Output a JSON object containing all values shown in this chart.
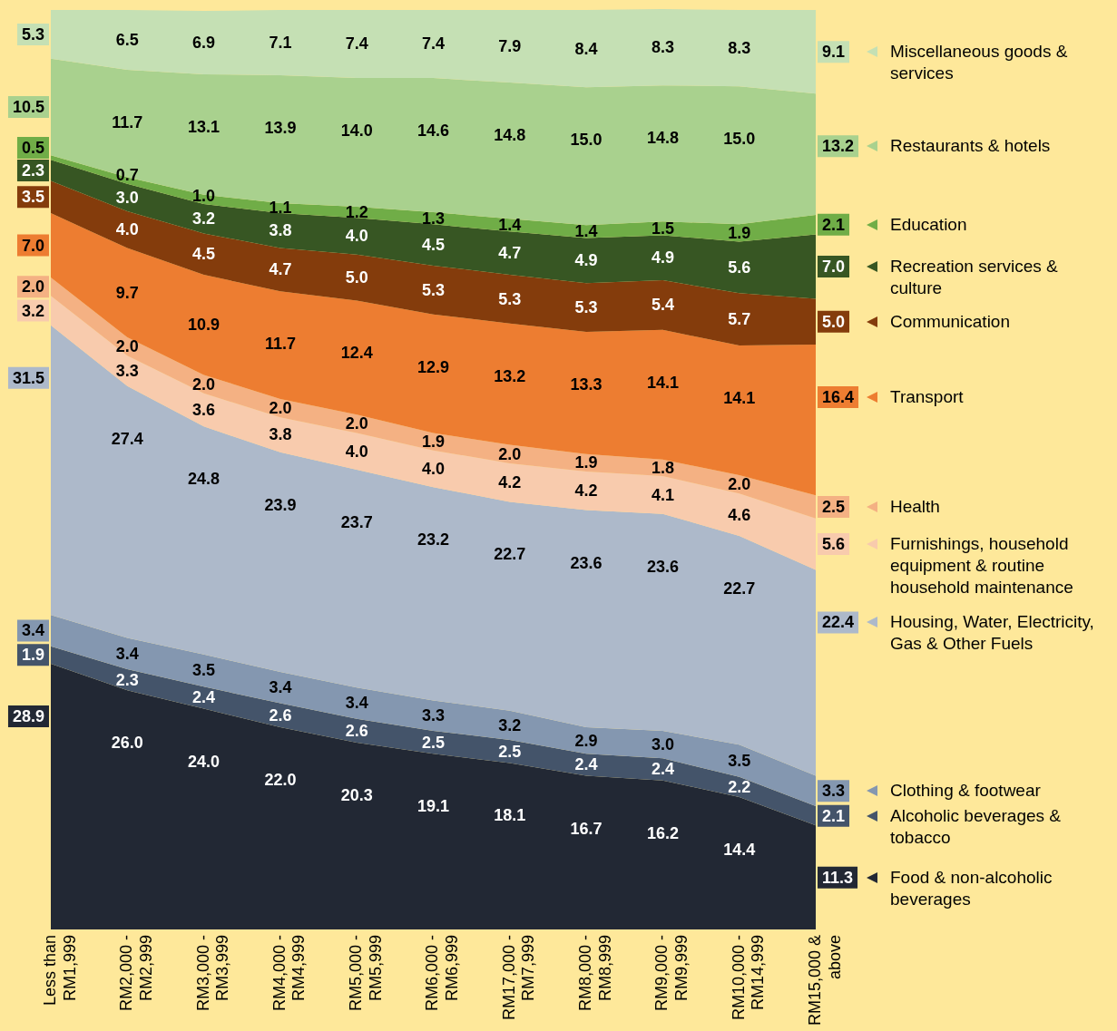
{
  "chart_data": {
    "type": "area",
    "stacked": true,
    "legend": "right",
    "tick_labels": "x",
    "categories": [
      "Less than RM1,999",
      "RM2,000 - RM2,999",
      "RM3,000 - RM3,999",
      "RM4,000 - RM4,999",
      "RM5,000 - RM5,999",
      "RM6,000 - RM6,999",
      "RM17,000 - RM7,999",
      "RM8,000 - RM8,999",
      "RM9,000 - RM9,999",
      "RM10,000 - RM14,999",
      "RM15,000 & above"
    ],
    "series": [
      {
        "name": "Food & non-alcoholic beverages",
        "color": "#222834",
        "values": [
          28.9,
          26.0,
          24.0,
          22.0,
          20.3,
          19.1,
          18.1,
          16.7,
          16.2,
          14.4,
          11.3
        ],
        "value_labels": [
          "28.9",
          "26.0",
          "24.0",
          "22.0",
          "20.3",
          "19.1",
          "18.1",
          "16.7",
          "16.2",
          "14.4",
          "11.3"
        ]
      },
      {
        "name": "Alcoholic beverages & tobacco",
        "color": "#44546a",
        "values": [
          1.9,
          2.3,
          2.4,
          2.6,
          2.6,
          2.5,
          2.5,
          2.4,
          2.4,
          2.2,
          2.1
        ],
        "value_labels": [
          "1.9",
          "2.3",
          "2.4",
          "2.6",
          "2.6",
          "2.5",
          "2.5",
          "2.4",
          "2.4",
          "2.2",
          "2.1"
        ]
      },
      {
        "name": "Clothing & footwear",
        "color": "#8497b0",
        "values": [
          3.4,
          3.4,
          3.5,
          3.4,
          3.4,
          3.3,
          3.2,
          2.9,
          3.0,
          3.5,
          3.3
        ],
        "value_labels": [
          "3.4",
          "3.4",
          "3.5",
          "3.4",
          "3.4",
          "3.3",
          "3.2",
          "2.9",
          "3.0",
          "3.5",
          "3.3"
        ]
      },
      {
        "name": "Housing, Water, Electricity, Gas & Other Fuels",
        "color": "#adb9ca",
        "values": [
          31.5,
          27.4,
          24.8,
          23.9,
          23.7,
          23.2,
          22.7,
          23.6,
          23.6,
          22.7,
          22.4
        ],
        "value_labels": [
          "31.5",
          "27.4",
          "24.8",
          "23.9",
          "23.7",
          "23.2",
          "22.7",
          "23.6",
          "23.6",
          "22.7",
          "22.4"
        ]
      },
      {
        "name": "Furnishings, household equipment & routine household maintenance",
        "color": "#f8cbad",
        "values": [
          3.2,
          3.3,
          3.6,
          3.8,
          4.0,
          4.0,
          4.2,
          4.2,
          4.1,
          4.6,
          5.6
        ],
        "value_labels": [
          "3.2",
          "3.3",
          "3.6",
          "3.8",
          "4.0",
          "4.0",
          "4.2",
          "4.2",
          "4.1",
          "4.6",
          "5.6"
        ]
      },
      {
        "name": "Health",
        "color": "#f4b183",
        "values": [
          2.0,
          2.0,
          2.0,
          2.0,
          2.0,
          1.9,
          2.0,
          1.9,
          1.8,
          2.0,
          2.5
        ],
        "value_labels": [
          "2.0",
          "2.0",
          "2.0",
          "2.0",
          "2.0",
          "1.9",
          "2.0",
          "1.9",
          "1.8",
          "2.0",
          "2.5"
        ]
      },
      {
        "name": "Transport",
        "color": "#ed7d31",
        "values": [
          7.0,
          9.7,
          10.9,
          11.7,
          12.4,
          12.9,
          13.2,
          13.3,
          14.1,
          14.1,
          16.4
        ],
        "value_labels": [
          "7.0",
          "9.7",
          "10.9",
          "11.7",
          "12.4",
          "12.9",
          "13.2",
          "13.3",
          "14.1",
          "14.1",
          "16.4"
        ]
      },
      {
        "name": "Communication",
        "color": "#843c0c",
        "values": [
          3.5,
          4.0,
          4.5,
          4.7,
          5.0,
          5.3,
          5.3,
          5.3,
          5.4,
          5.7,
          5.0
        ],
        "value_labels": [
          "3.5",
          "4.0",
          "4.5",
          "4.7",
          "5.0",
          "5.3",
          "5.3",
          "5.3",
          "5.4",
          "5.7",
          "5.0"
        ]
      },
      {
        "name": "Recreation services & culture",
        "color": "#375623",
        "values": [
          2.3,
          3.0,
          3.2,
          3.8,
          4.0,
          4.5,
          4.7,
          4.9,
          4.9,
          5.6,
          7.0
        ],
        "value_labels": [
          "2.3",
          "3.0",
          "3.2",
          "3.8",
          "4.0",
          "4.5",
          "4.7",
          "4.9",
          "4.9",
          "5.6",
          "7.0"
        ]
      },
      {
        "name": "Education",
        "color": "#70ad47",
        "values": [
          0.5,
          0.7,
          1.0,
          1.1,
          1.2,
          1.3,
          1.4,
          1.4,
          1.5,
          1.9,
          2.1
        ],
        "value_labels": [
          "0.5",
          "0.7",
          "1.0",
          "1.1",
          "1.2",
          "1.3",
          "1.4",
          "1.4",
          "1.5",
          "1.9",
          "2.1"
        ]
      },
      {
        "name": "Restaurants & hotels",
        "color": "#a9d18e",
        "values": [
          10.5,
          11.7,
          13.1,
          13.9,
          14.0,
          14.6,
          14.8,
          15.0,
          14.8,
          15.0,
          13.2
        ],
        "value_labels": [
          "10.5",
          "11.7",
          "13.1",
          "13.9",
          "14.0",
          "14.6",
          "14.8",
          "15.0",
          "14.8",
          "15.0",
          "13.2"
        ]
      },
      {
        "name": "Miscellaneous goods & services",
        "color": "#c5e0b4",
        "values": [
          5.3,
          6.5,
          6.9,
          7.1,
          7.4,
          7.4,
          7.9,
          8.4,
          8.3,
          8.3,
          9.1
        ],
        "value_labels": [
          "5.3",
          "6.5",
          "6.9",
          "7.1",
          "7.4",
          "7.4",
          "7.9",
          "8.4",
          "8.3",
          "8.3",
          "9.1"
        ]
      }
    ]
  }
}
